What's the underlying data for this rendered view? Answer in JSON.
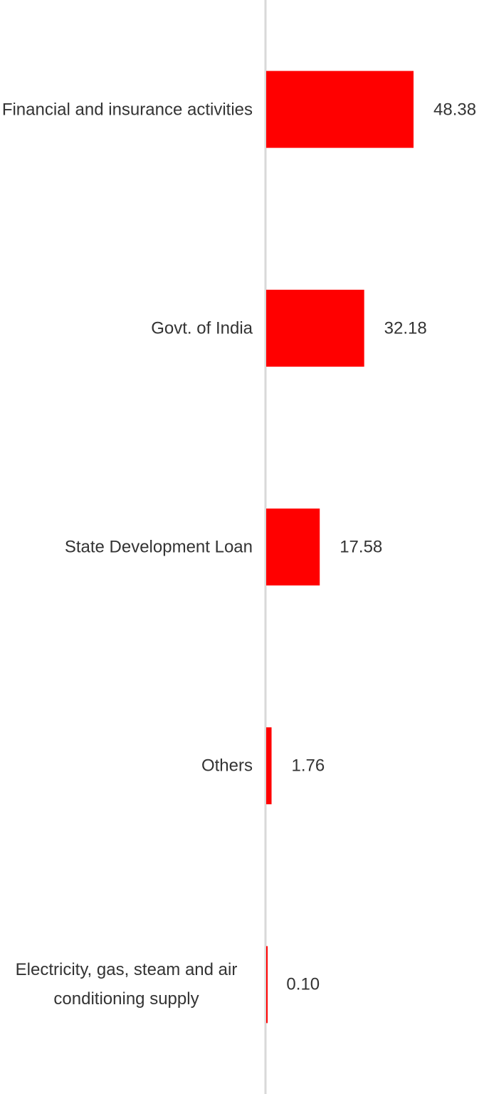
{
  "chart_data": {
    "type": "bar",
    "orientation": "horizontal",
    "categories": [
      "Financial and insurance activities",
      "Govt. of India",
      "State Development Loan",
      "Others",
      "Electricity, gas, steam and air conditioning supply"
    ],
    "values": [
      48.38,
      32.18,
      17.58,
      1.76,
      0.1
    ],
    "value_labels": [
      "48.38",
      "32.18",
      "17.58",
      "1.76",
      "0.10"
    ],
    "color": "#ff0000"
  }
}
